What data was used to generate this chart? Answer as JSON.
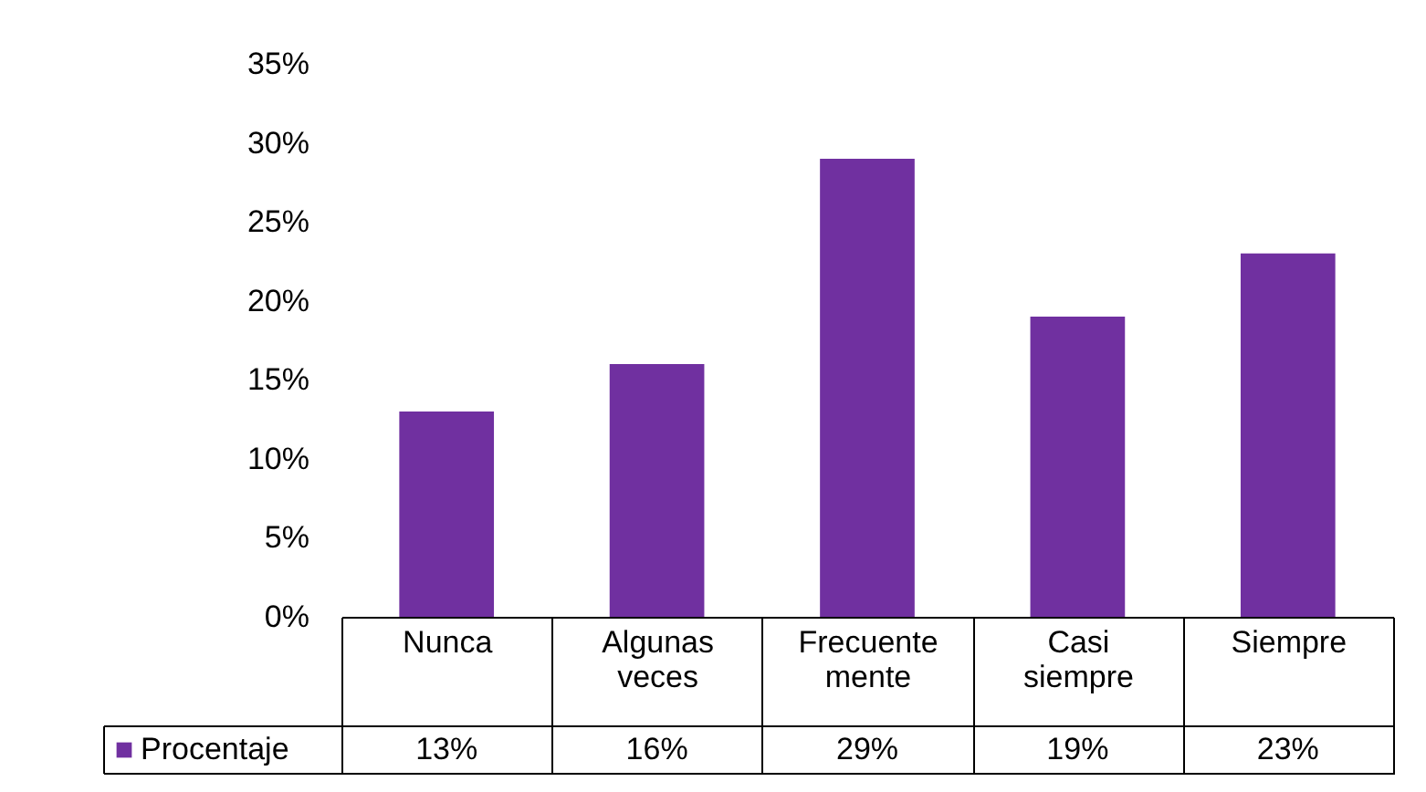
{
  "chart_data": {
    "type": "bar",
    "categories": [
      "Nunca",
      "Algunas veces",
      "Frecuente mente",
      "Casi siempre",
      "Siempre"
    ],
    "series": [
      {
        "name": "Procentaje",
        "color": "#7030a0",
        "values": [
          13,
          16,
          29,
          19,
          23
        ],
        "value_labels": [
          "13%",
          "16%",
          "29%",
          "19%",
          "23%"
        ]
      }
    ],
    "ylim": [
      0,
      35
    ],
    "yticks": [
      {
        "value": 0,
        "label": "0%"
      },
      {
        "value": 5,
        "label": "5%"
      },
      {
        "value": 10,
        "label": "10%"
      },
      {
        "value": 15,
        "label": "15%"
      },
      {
        "value": 20,
        "label": "20%"
      },
      {
        "value": 25,
        "label": "25%"
      },
      {
        "value": 30,
        "label": "30%"
      },
      {
        "value": 35,
        "label": "35%"
      }
    ],
    "grid": false,
    "legend": "bottom"
  }
}
